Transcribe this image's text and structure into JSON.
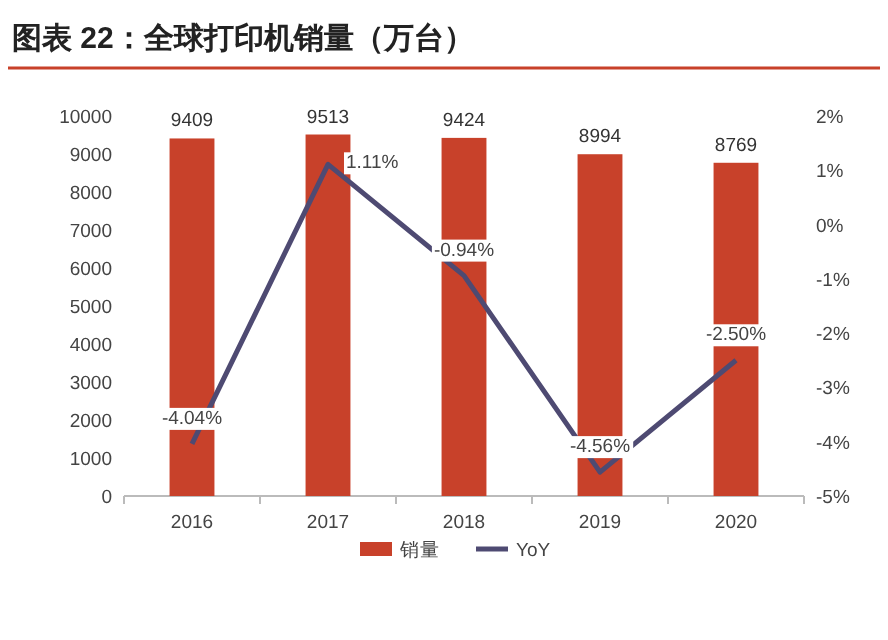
{
  "chart_data": {
    "type": "bar",
    "title": "图表 22：全球打印机销量（万台）",
    "categories": [
      "2016",
      "2017",
      "2018",
      "2019",
      "2020"
    ],
    "series": [
      {
        "name": "销量",
        "color": "#c8412a",
        "values": [
          9409,
          9513,
          9424,
          8994,
          8769
        ],
        "value_labels": [
          "9409",
          "9513",
          "9424",
          "8994",
          "8769"
        ]
      },
      {
        "name": "YoY",
        "type": "line",
        "axis": "y2",
        "color": "#4e4a72",
        "values": [
          -4.04,
          1.11,
          -0.94,
          -4.56,
          -2.5
        ],
        "value_labels": [
          "-4.04%",
          "1.11%",
          "-0.94%",
          "-4.56%",
          "-2.50%"
        ]
      }
    ],
    "ylim": [
      0,
      10000
    ],
    "yticks": [
      0,
      1000,
      2000,
      3000,
      4000,
      5000,
      6000,
      7000,
      8000,
      9000,
      10000
    ],
    "y2lim": [
      -5,
      2
    ],
    "y2ticks": [
      {
        "value": -5,
        "label": "-5%"
      },
      {
        "value": -4,
        "label": "-4%"
      },
      {
        "value": -3,
        "label": "-3%"
      },
      {
        "value": -2,
        "label": "-2%"
      },
      {
        "value": -1,
        "label": "-1%"
      },
      {
        "value": 0,
        "label": "0%"
      },
      {
        "value": 1,
        "label": "1%"
      },
      {
        "value": 2,
        "label": "2%"
      }
    ],
    "legend": "bottom",
    "line_style": "solid",
    "marker": "none"
  }
}
